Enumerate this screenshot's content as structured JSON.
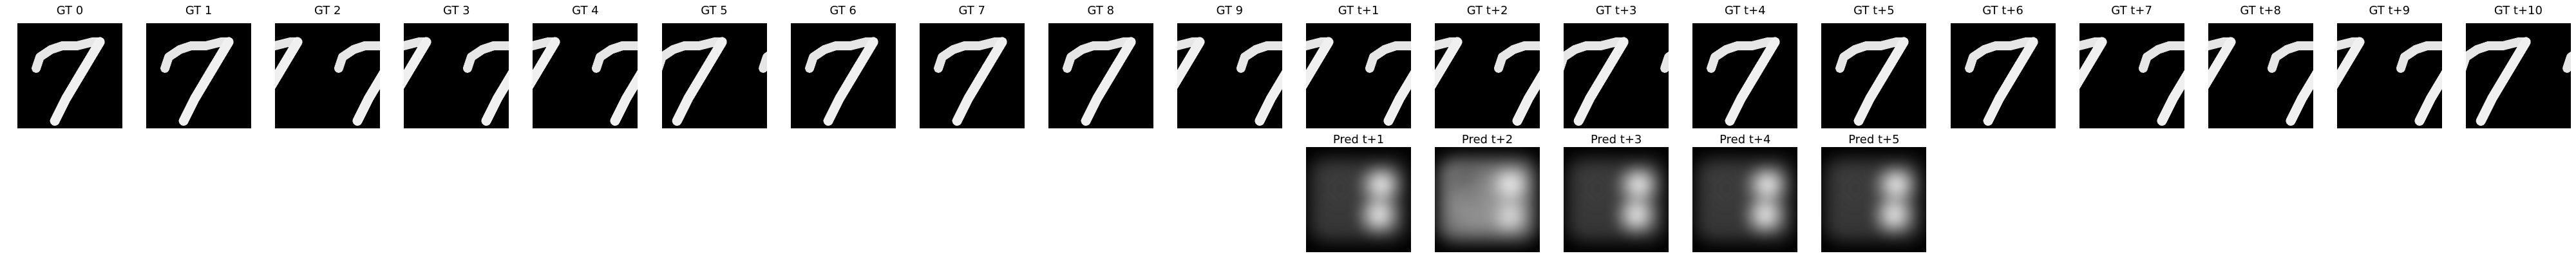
{
  "gt_frames": [
    {
      "label": "GT 0",
      "shift": 0
    },
    {
      "label": "GT 1",
      "shift": 0
    },
    {
      "label": "GT 2",
      "shift": 12
    },
    {
      "label": "GT 3",
      "shift": 12
    },
    {
      "label": "GT 4",
      "shift": 12
    },
    {
      "label": "GT 5",
      "shift": -6
    },
    {
      "label": "GT 6",
      "shift": 0
    },
    {
      "label": "GT 7",
      "shift": 0
    },
    {
      "label": "GT 8",
      "shift": 0
    },
    {
      "label": "GT 9",
      "shift": 12
    },
    {
      "label": "GT t+1",
      "shift": 12
    },
    {
      "label": "GT t+2",
      "shift": 12
    },
    {
      "label": "GT t+3",
      "shift": -6
    },
    {
      "label": "GT t+4",
      "shift": 0
    },
    {
      "label": "GT t+5",
      "shift": 0
    },
    {
      "label": "GT t+6",
      "shift": 0
    },
    {
      "label": "GT t+7",
      "shift": 12
    },
    {
      "label": "GT t+8",
      "shift": 12
    },
    {
      "label": "GT t+9",
      "shift": 12
    },
    {
      "label": "GT t+10",
      "shift": -6
    }
  ],
  "pred_frames": [
    {
      "label": "Pred t+1",
      "column": 10
    },
    {
      "label": "Pred t+2",
      "column": 11
    },
    {
      "label": "Pred t+3",
      "column": 12
    },
    {
      "label": "Pred t+4",
      "column": 13
    },
    {
      "label": "Pred t+5",
      "column": 14
    }
  ]
}
